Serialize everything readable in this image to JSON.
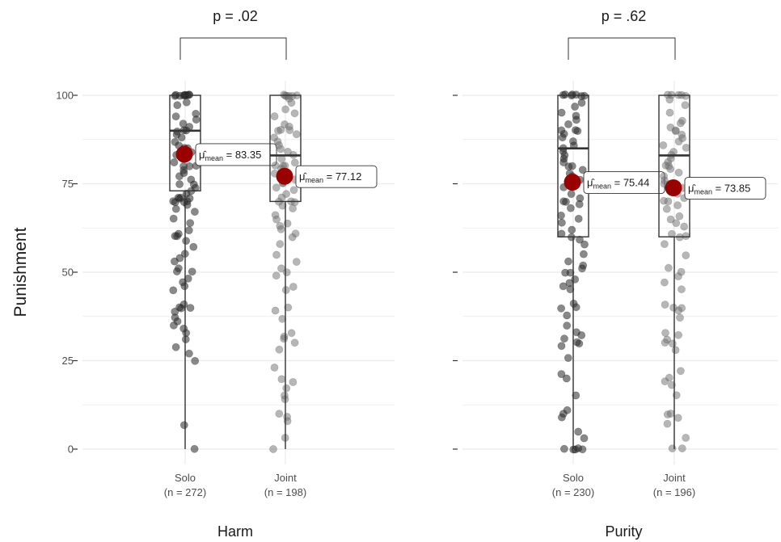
{
  "chart_data": {
    "type": "box-scatter",
    "ylabel": "Punishment",
    "ylim": [
      0,
      100
    ],
    "yticks": [
      0,
      25,
      50,
      75,
      100
    ],
    "facets": [
      {
        "name": "Harm",
        "p_label": "p = .02",
        "groups": [
          {
            "category": "Solo",
            "n_label": "(n = 272)",
            "mean": 83.35,
            "mean_label": "= 83.35",
            "box": {
              "q1": 73,
              "median": 90,
              "q3": 100,
              "whisker_low": 0,
              "whisker_high": 100
            },
            "points": [
              100,
              100,
              100,
              100,
              100,
              100,
              100,
              100,
              100,
              98,
              97,
              95,
              94,
              93,
              92,
              91,
              90,
              90,
              90,
              89,
              88,
              87,
              86,
              85,
              85,
              84,
              83,
              82,
              81,
              80,
              80,
              80,
              79,
              78,
              77,
              76,
              75,
              75,
              74,
              73,
              72,
              71,
              71,
              71,
              71,
              70,
              70,
              70,
              70,
              69,
              68,
              67,
              65,
              64,
              62,
              61,
              60,
              60,
              59,
              57,
              55,
              54,
              53,
              51,
              50,
              50,
              48,
              47,
              46,
              45,
              41,
              40,
              40,
              40,
              39,
              37,
              36,
              35,
              34,
              33,
              31,
              29,
              27,
              25,
              7,
              0
            ]
          },
          {
            "category": "Joint",
            "n_label": "(n = 198)",
            "mean": 77.12,
            "mean_label": "= 77.12",
            "box": {
              "q1": 70,
              "median": 83,
              "q3": 100,
              "whisker_low": 0,
              "whisker_high": 100
            },
            "points": [
              100,
              100,
              100,
              100,
              100,
              100,
              99,
              98,
              96,
              95,
              94,
              92,
              91,
              90,
              90,
              90,
              89,
              88,
              87,
              86,
              85,
              84,
              83,
              82,
              81,
              80,
              80,
              80,
              79,
              78,
              77,
              76,
              75,
              75,
              74,
              73,
              72,
              71,
              70,
              70,
              70,
              69,
              68,
              66,
              65,
              64,
              63,
              62,
              61,
              60,
              58,
              55,
              53,
              51,
              50,
              49,
              46,
              45,
              40,
              39,
              37,
              33,
              32,
              31,
              30,
              28,
              23,
              20,
              19,
              17,
              15,
              14,
              10,
              9,
              8,
              3,
              0
            ]
          }
        ]
      },
      {
        "name": "Purity",
        "p_label": "p = .62",
        "groups": [
          {
            "category": "Solo",
            "n_label": "(n = 230)",
            "mean": 75.44,
            "mean_label": "= 75.44",
            "box": {
              "q1": 60,
              "median": 85,
              "q3": 100,
              "whisker_low": 0,
              "whisker_high": 100
            },
            "points": [
              100,
              100,
              100,
              100,
              100,
              100,
              100,
              98,
              97,
              95,
              94,
              93,
              92,
              90,
              90,
              90,
              89,
              88,
              87,
              86,
              85,
              84,
              83,
              82,
              81,
              80,
              80,
              79,
              78,
              77,
              76,
              75,
              75,
              74,
              72,
              71,
              70,
              70,
              69,
              68,
              66,
              65,
              64,
              62,
              61,
              60,
              59,
              58,
              55,
              53,
              52,
              51,
              50,
              50,
              48,
              47,
              46,
              45,
              41,
              40,
              40,
              38,
              35,
              33,
              32,
              31,
              30,
              30,
              29,
              26,
              21,
              20,
              15,
              11,
              10,
              9,
              5,
              3,
              0,
              0,
              0,
              0,
              0
            ]
          },
          {
            "category": "Joint",
            "n_label": "(n = 196)",
            "mean": 73.85,
            "mean_label": "= 73.85",
            "box": {
              "q1": 60,
              "median": 83,
              "q3": 100,
              "whisker_low": 0,
              "whisker_high": 100
            },
            "points": [
              100,
              100,
              100,
              100,
              100,
              99,
              97,
              95,
              93,
              92,
              91,
              90,
              90,
              89,
              88,
              87,
              86,
              85,
              84,
              83,
              82,
              81,
              80,
              80,
              79,
              78,
              77,
              76,
              75,
              75,
              74,
              73,
              72,
              71,
              70,
              70,
              69,
              68,
              66,
              65,
              64,
              63,
              61,
              60,
              60,
              58,
              55,
              51,
              50,
              49,
              47,
              45,
              41,
              40,
              40,
              39,
              37,
              33,
              32,
              31,
              30,
              30,
              28,
              22,
              20,
              19,
              18,
              15,
              10,
              10,
              9,
              7,
              3,
              0,
              0
            ]
          }
        ]
      }
    ],
    "mean_color": "#990000",
    "grid": true
  }
}
